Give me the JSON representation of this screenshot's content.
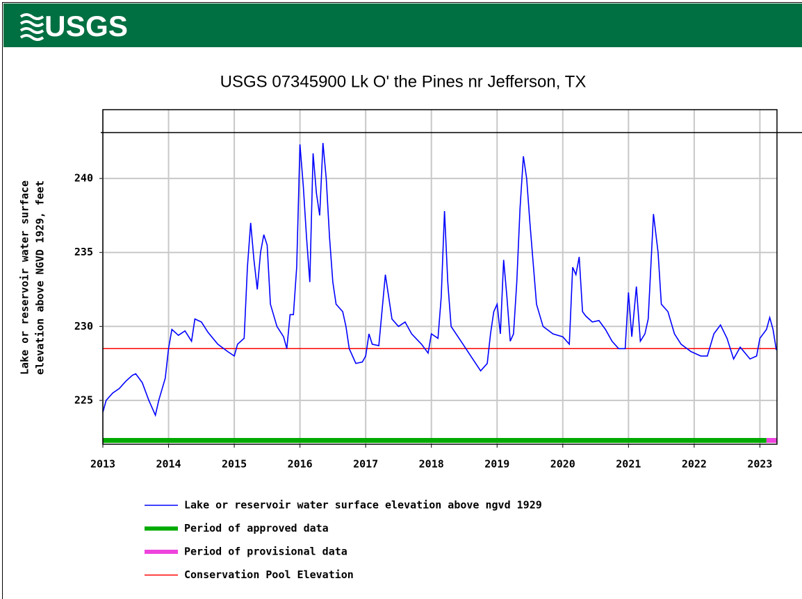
{
  "header": {
    "logo": "USGS"
  },
  "chart_data": {
    "type": "line",
    "title": "USGS 07345900 Lk O' the Pines nr Jefferson, TX",
    "y_label": [
      "Lake or reservoir water surface",
      "elevation above NGVD 1929, feet"
    ],
    "xlim": [
      2013,
      2023.26
    ],
    "xticks": [
      2013,
      2014,
      2015,
      2016,
      2017,
      2018,
      2019,
      2020,
      2021,
      2022,
      2023
    ],
    "ylim": [
      222.04,
      244.65
    ],
    "yticks": [
      225,
      230,
      235,
      240
    ],
    "grid": true,
    "series": [
      {
        "name": "Lake or reservoir water surface elevation above ngvd 1929",
        "color": "#0000ff",
        "x": [
          2013.0,
          2013.05,
          2013.15,
          2013.25,
          2013.35,
          2013.45,
          2013.5,
          2013.6,
          2013.7,
          2013.8,
          2013.85,
          2013.95,
          2014.0,
          2014.05,
          2014.15,
          2014.25,
          2014.35,
          2014.4,
          2014.5,
          2014.6,
          2014.75,
          2014.9,
          2015.0,
          2015.05,
          2015.15,
          2015.2,
          2015.25,
          2015.3,
          2015.35,
          2015.4,
          2015.45,
          2015.5,
          2015.55,
          2015.65,
          2015.75,
          2015.8,
          2015.85,
          2015.9,
          2015.95,
          2016.0,
          2016.05,
          2016.1,
          2016.15,
          2016.2,
          2016.25,
          2016.3,
          2016.35,
          2016.4,
          2016.45,
          2016.5,
          2016.55,
          2016.65,
          2016.7,
          2016.75,
          2016.85,
          2016.95,
          2017.0,
          2017.05,
          2017.1,
          2017.2,
          2017.3,
          2017.35,
          2017.4,
          2017.5,
          2017.6,
          2017.7,
          2017.85,
          2017.95,
          2018.0,
          2018.1,
          2018.15,
          2018.2,
          2018.25,
          2018.3,
          2018.45,
          2018.6,
          2018.75,
          2018.85,
          2018.9,
          2018.95,
          2019.0,
          2019.05,
          2019.1,
          2019.15,
          2019.2,
          2019.25,
          2019.3,
          2019.35,
          2019.4,
          2019.45,
          2019.5,
          2019.6,
          2019.7,
          2019.85,
          2020.0,
          2020.1,
          2020.15,
          2020.2,
          2020.25,
          2020.3,
          2020.35,
          2020.45,
          2020.55,
          2020.65,
          2020.75,
          2020.85,
          2020.95,
          2021.0,
          2021.05,
          2021.12,
          2021.18,
          2021.25,
          2021.3,
          2021.38,
          2021.45,
          2021.5,
          2021.6,
          2021.7,
          2021.8,
          2021.95,
          2022.1,
          2022.2,
          2022.3,
          2022.4,
          2022.5,
          2022.6,
          2022.7,
          2022.85,
          2022.95,
          2023.0,
          2023.1,
          2023.15,
          2023.2,
          2023.25
        ],
        "values": [
          224.2,
          225.0,
          225.5,
          225.8,
          226.3,
          226.7,
          226.8,
          226.2,
          225.0,
          224.0,
          225.0,
          226.5,
          228.5,
          229.8,
          229.4,
          229.7,
          229.0,
          230.5,
          230.3,
          229.6,
          228.8,
          228.3,
          228.0,
          228.8,
          229.2,
          234.0,
          237.0,
          234.5,
          232.5,
          235.0,
          236.2,
          235.5,
          231.5,
          230.0,
          229.3,
          228.5,
          230.8,
          230.8,
          234.0,
          242.3,
          239.5,
          236.0,
          233.0,
          241.7,
          239.0,
          237.5,
          242.4,
          240.0,
          236.0,
          233.0,
          231.5,
          231.0,
          230.0,
          228.5,
          227.5,
          227.6,
          228.0,
          229.5,
          228.8,
          228.7,
          233.5,
          232.0,
          230.5,
          230.0,
          230.3,
          229.5,
          228.8,
          228.2,
          229.5,
          229.2,
          232.0,
          237.8,
          233.0,
          230.0,
          229.0,
          228.0,
          227.0,
          227.5,
          229.5,
          231.0,
          231.5,
          229.5,
          234.5,
          232.0,
          229.0,
          229.5,
          233.0,
          238.0,
          241.5,
          240.0,
          237.0,
          231.5,
          230.0,
          229.5,
          229.3,
          228.8,
          234.0,
          233.5,
          234.7,
          231.0,
          230.7,
          230.3,
          230.4,
          229.8,
          229.0,
          228.5,
          228.5,
          232.3,
          229.3,
          232.7,
          229.0,
          229.5,
          230.5,
          237.6,
          235.0,
          231.5,
          231.0,
          229.5,
          228.8,
          228.3,
          228.0,
          228.0,
          229.5,
          230.1,
          229.2,
          227.8,
          228.6,
          227.8,
          228.0,
          229.2,
          229.8,
          230.6,
          229.8,
          228.4
        ]
      }
    ],
    "periods": [
      {
        "name": "Period of approved data",
        "color": "#00aa00",
        "span": [
          2013,
          2023.1
        ]
      },
      {
        "name": "Period of provisional data",
        "color": "#ee44dd",
        "span": [
          2023.1,
          2023.26
        ]
      }
    ],
    "reference_lines": [
      {
        "name": "Conservation Pool Elevation",
        "color": "#ff0000",
        "value": 228.5
      }
    ]
  }
}
